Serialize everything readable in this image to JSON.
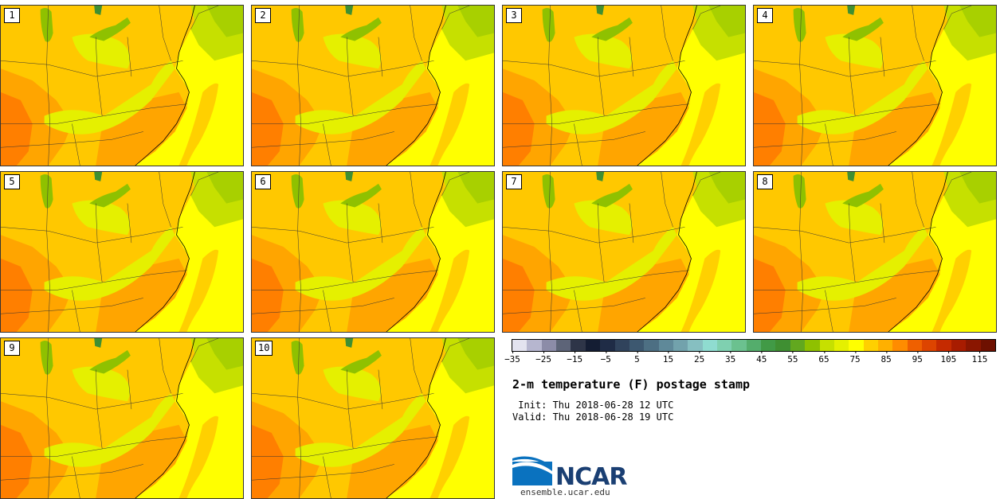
{
  "panels": [
    {
      "label": "1"
    },
    {
      "label": "2"
    },
    {
      "label": "3"
    },
    {
      "label": "4"
    },
    {
      "label": "5"
    },
    {
      "label": "6"
    },
    {
      "label": "7"
    },
    {
      "label": "8"
    },
    {
      "label": "9"
    },
    {
      "label": "10"
    }
  ],
  "legend": {
    "colors": [
      "#e3e3ef",
      "#b6b6cf",
      "#8c8ca8",
      "#5d6478",
      "#2e3548",
      "#141d33",
      "#1f2c46",
      "#30435c",
      "#3d5870",
      "#4d6f83",
      "#5f8999",
      "#72a2ac",
      "#86bfc1",
      "#8fdcd0",
      "#7fd0b0",
      "#6bc18f",
      "#54ad6c",
      "#419a46",
      "#3f8f32",
      "#62a81f",
      "#8fc100",
      "#c6e000",
      "#e5f000",
      "#ffff00",
      "#ffd000",
      "#ffb000",
      "#ff8c00",
      "#ef6000",
      "#dd4400",
      "#c52a00",
      "#a81c00",
      "#8a1600",
      "#6e1000"
    ],
    "ticks": [
      "−35",
      "−25",
      "−15",
      "−5",
      "5",
      "15",
      "25",
      "35",
      "45",
      "55",
      "65",
      "75",
      "85",
      "95",
      "105",
      "115"
    ]
  },
  "title": "2-m temperature (F) postage stamp",
  "init": "Init: Thu 2018-06-28 12 UTC",
  "valid": "Valid: Thu 2018-06-28 19 UTC",
  "logo": {
    "text": "NCAR",
    "url": "ensemble.ucar.edu"
  }
}
